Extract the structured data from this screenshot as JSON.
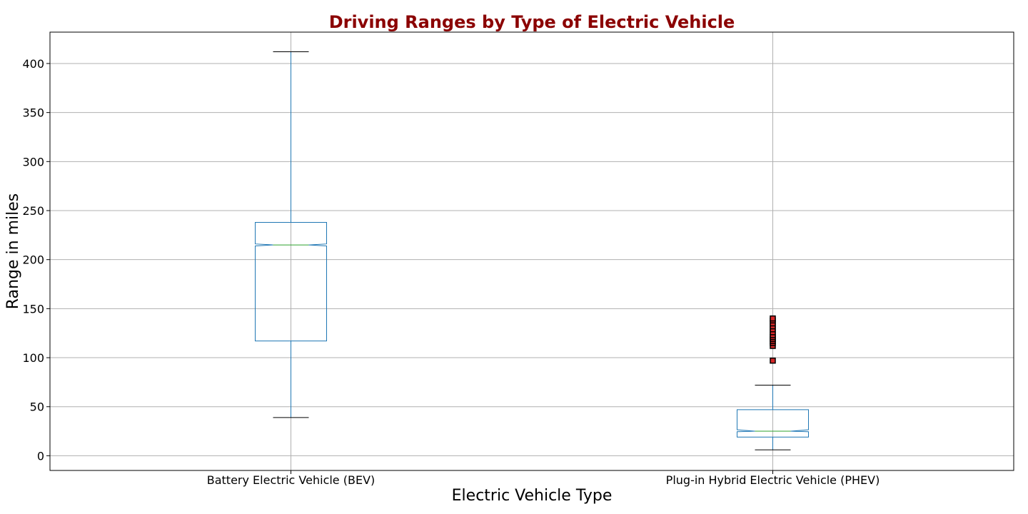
{
  "chart_data": {
    "type": "box",
    "notched": true,
    "title": "Driving Ranges by Type of Electric Vehicle",
    "xlabel": "Electric Vehicle Type",
    "ylabel": "Range in miles",
    "ylim": [
      -15,
      432
    ],
    "yticks": [
      0,
      50,
      100,
      150,
      200,
      250,
      300,
      350,
      400
    ],
    "grid": true,
    "colors": {
      "title": "#8b0000",
      "box": "#1f77b4",
      "median": "#2ca02c",
      "caps": "#000000",
      "outlier_edge": "#000000",
      "outlier_fill": "#d62728",
      "grid": "#b0b0b0"
    },
    "categories": [
      "Battery Electric Vehicle (BEV)",
      "Plug-in Hybrid Electric Vehicle (PHEV)"
    ],
    "boxes": [
      {
        "category": "Battery Electric Vehicle (BEV)",
        "whisker_low": 39,
        "q1": 117,
        "median": 215,
        "q3": 238,
        "whisker_high": 412,
        "notch_low": 214,
        "notch_high": 216,
        "outliers": []
      },
      {
        "category": "Plug-in Hybrid Electric Vehicle (PHEV)",
        "whisker_low": 6,
        "q1": 19,
        "median": 25,
        "q3": 47,
        "whisker_high": 72,
        "notch_low": 24.5,
        "notch_high": 26.5,
        "outliers": [
          97,
          112,
          115,
          117,
          119,
          121,
          123,
          126,
          129,
          132,
          135,
          138,
          140
        ]
      }
    ]
  }
}
